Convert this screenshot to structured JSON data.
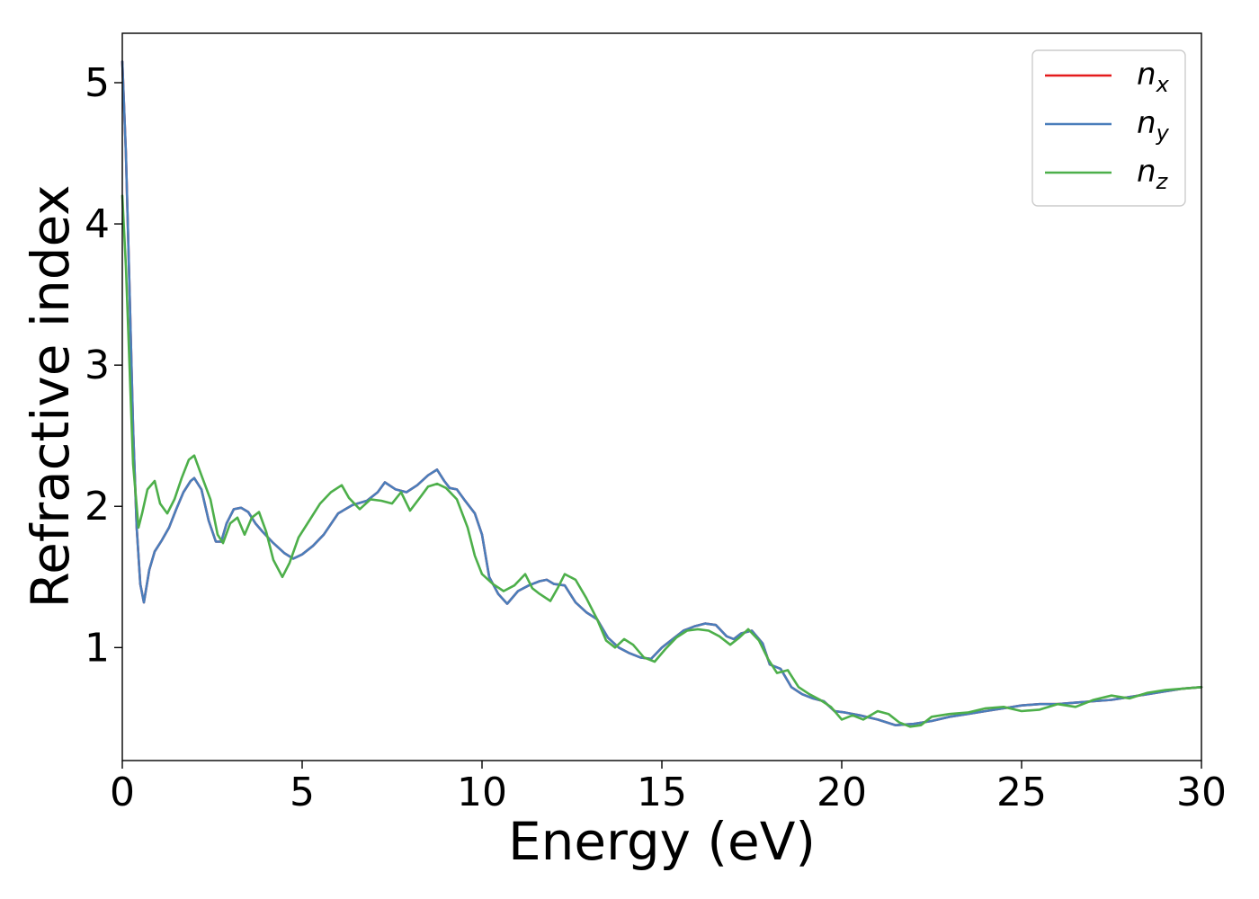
{
  "chart_data": {
    "type": "line",
    "xlabel": "Energy (eV)",
    "ylabel": "Refractive index",
    "xlim": [
      0,
      30
    ],
    "ylim": [
      0.2,
      5.35
    ],
    "xticks": [
      0,
      5,
      10,
      15,
      20,
      25,
      30
    ],
    "yticks": [
      1,
      2,
      3,
      4,
      5
    ],
    "grid": false,
    "legend_position": "top-right",
    "series": [
      {
        "name": "n_x",
        "label_main": "n",
        "label_sub": "x",
        "color": "#e41a1c",
        "x": [
          0.0,
          0.1,
          0.2,
          0.3,
          0.4,
          0.5,
          0.6,
          0.75,
          0.9,
          1.1,
          1.3,
          1.5,
          1.7,
          1.9,
          2.0,
          2.2,
          2.4,
          2.6,
          2.75,
          2.9,
          3.1,
          3.3,
          3.5,
          3.7,
          3.9,
          4.2,
          4.5,
          4.75,
          5.0,
          5.3,
          5.6,
          6.0,
          6.4,
          6.8,
          7.1,
          7.3,
          7.6,
          7.9,
          8.2,
          8.5,
          8.75,
          8.95,
          9.1,
          9.3,
          9.5,
          9.8,
          10.0,
          10.2,
          10.45,
          10.7,
          11.0,
          11.3,
          11.6,
          11.8,
          12.0,
          12.3,
          12.6,
          12.9,
          13.2,
          13.5,
          13.8,
          14.1,
          14.4,
          14.7,
          15.0,
          15.3,
          15.6,
          15.9,
          16.2,
          16.5,
          16.8,
          17.0,
          17.2,
          17.5,
          17.8,
          18.0,
          18.3,
          18.6,
          18.9,
          19.2,
          19.5,
          19.8,
          20.1,
          20.5,
          21.0,
          21.5,
          22.0,
          22.5,
          23.0,
          23.5,
          24.0,
          24.5,
          25.0,
          25.5,
          26.0,
          26.5,
          27.0,
          27.5,
          28.0,
          28.5,
          29.0,
          29.5,
          30.0
        ],
        "y": [
          5.15,
          4.5,
          3.55,
          2.55,
          1.85,
          1.45,
          1.32,
          1.55,
          1.68,
          1.76,
          1.85,
          1.98,
          2.1,
          2.18,
          2.2,
          2.12,
          1.9,
          1.75,
          1.75,
          1.88,
          1.98,
          1.99,
          1.96,
          1.88,
          1.82,
          1.74,
          1.67,
          1.63,
          1.66,
          1.72,
          1.8,
          1.95,
          2.01,
          2.04,
          2.1,
          2.17,
          2.12,
          2.1,
          2.15,
          2.22,
          2.26,
          2.18,
          2.13,
          2.12,
          2.05,
          1.95,
          1.8,
          1.5,
          1.38,
          1.31,
          1.4,
          1.44,
          1.47,
          1.48,
          1.45,
          1.44,
          1.32,
          1.25,
          1.2,
          1.07,
          1.0,
          0.96,
          0.93,
          0.92,
          1.0,
          1.06,
          1.12,
          1.15,
          1.17,
          1.16,
          1.08,
          1.06,
          1.1,
          1.12,
          1.03,
          0.88,
          0.85,
          0.72,
          0.67,
          0.64,
          0.62,
          0.55,
          0.54,
          0.52,
          0.49,
          0.45,
          0.46,
          0.48,
          0.51,
          0.53,
          0.55,
          0.57,
          0.59,
          0.6,
          0.6,
          0.61,
          0.62,
          0.63,
          0.65,
          0.67,
          0.69,
          0.71,
          0.72
        ]
      },
      {
        "name": "n_y",
        "label_main": "n",
        "label_sub": "y",
        "color": "#4a7ebb",
        "x": [
          0.0,
          0.1,
          0.2,
          0.3,
          0.4,
          0.5,
          0.6,
          0.75,
          0.9,
          1.1,
          1.3,
          1.5,
          1.7,
          1.9,
          2.0,
          2.2,
          2.4,
          2.6,
          2.75,
          2.9,
          3.1,
          3.3,
          3.5,
          3.7,
          3.9,
          4.2,
          4.5,
          4.75,
          5.0,
          5.3,
          5.6,
          6.0,
          6.4,
          6.8,
          7.1,
          7.3,
          7.6,
          7.9,
          8.2,
          8.5,
          8.75,
          8.95,
          9.1,
          9.3,
          9.5,
          9.8,
          10.0,
          10.2,
          10.45,
          10.7,
          11.0,
          11.3,
          11.6,
          11.8,
          12.0,
          12.3,
          12.6,
          12.9,
          13.2,
          13.5,
          13.8,
          14.1,
          14.4,
          14.7,
          15.0,
          15.3,
          15.6,
          15.9,
          16.2,
          16.5,
          16.8,
          17.0,
          17.2,
          17.5,
          17.8,
          18.0,
          18.3,
          18.6,
          18.9,
          19.2,
          19.5,
          19.8,
          20.1,
          20.5,
          21.0,
          21.5,
          22.0,
          22.5,
          23.0,
          23.5,
          24.0,
          24.5,
          25.0,
          25.5,
          26.0,
          26.5,
          27.0,
          27.5,
          28.0,
          28.5,
          29.0,
          29.5,
          30.0
        ],
        "y": [
          5.15,
          4.5,
          3.55,
          2.55,
          1.85,
          1.45,
          1.32,
          1.55,
          1.68,
          1.76,
          1.85,
          1.98,
          2.1,
          2.18,
          2.2,
          2.12,
          1.9,
          1.75,
          1.75,
          1.88,
          1.98,
          1.99,
          1.96,
          1.88,
          1.82,
          1.74,
          1.67,
          1.63,
          1.66,
          1.72,
          1.8,
          1.95,
          2.01,
          2.04,
          2.1,
          2.17,
          2.12,
          2.1,
          2.15,
          2.22,
          2.26,
          2.18,
          2.13,
          2.12,
          2.05,
          1.95,
          1.8,
          1.5,
          1.38,
          1.31,
          1.4,
          1.44,
          1.47,
          1.48,
          1.45,
          1.44,
          1.32,
          1.25,
          1.2,
          1.07,
          1.0,
          0.96,
          0.93,
          0.92,
          1.0,
          1.06,
          1.12,
          1.15,
          1.17,
          1.16,
          1.08,
          1.06,
          1.1,
          1.12,
          1.03,
          0.88,
          0.85,
          0.72,
          0.67,
          0.64,
          0.62,
          0.55,
          0.54,
          0.52,
          0.49,
          0.45,
          0.46,
          0.48,
          0.51,
          0.53,
          0.55,
          0.57,
          0.59,
          0.6,
          0.6,
          0.61,
          0.62,
          0.63,
          0.65,
          0.67,
          0.69,
          0.71,
          0.72
        ]
      },
      {
        "name": "n_z",
        "label_main": "n",
        "label_sub": "z",
        "color": "#4daf4a",
        "x": [
          0.0,
          0.1,
          0.2,
          0.3,
          0.45,
          0.55,
          0.7,
          0.9,
          1.05,
          1.25,
          1.45,
          1.65,
          1.85,
          2.0,
          2.2,
          2.45,
          2.65,
          2.8,
          3.0,
          3.2,
          3.4,
          3.6,
          3.8,
          4.0,
          4.2,
          4.45,
          4.65,
          4.9,
          5.2,
          5.5,
          5.8,
          6.1,
          6.3,
          6.6,
          6.9,
          7.2,
          7.5,
          7.75,
          8.0,
          8.3,
          8.5,
          8.75,
          9.0,
          9.3,
          9.6,
          9.8,
          10.0,
          10.3,
          10.6,
          10.9,
          11.2,
          11.4,
          11.6,
          11.9,
          12.1,
          12.3,
          12.6,
          12.9,
          13.2,
          13.45,
          13.7,
          13.95,
          14.2,
          14.5,
          14.8,
          15.1,
          15.4,
          15.7,
          16.0,
          16.3,
          16.6,
          16.9,
          17.15,
          17.4,
          17.7,
          17.95,
          18.2,
          18.5,
          18.8,
          19.1,
          19.4,
          19.7,
          20.0,
          20.3,
          20.6,
          21.0,
          21.3,
          21.6,
          21.9,
          22.2,
          22.5,
          23.0,
          23.5,
          24.0,
          24.5,
          25.0,
          25.5,
          26.0,
          26.5,
          27.0,
          27.5,
          28.0,
          28.5,
          29.0,
          29.5,
          30.0
        ],
        "y": [
          4.2,
          3.7,
          3.0,
          2.3,
          1.85,
          1.95,
          2.12,
          2.18,
          2.02,
          1.95,
          2.05,
          2.2,
          2.33,
          2.36,
          2.22,
          2.05,
          1.8,
          1.74,
          1.88,
          1.92,
          1.8,
          1.92,
          1.96,
          1.82,
          1.62,
          1.5,
          1.6,
          1.78,
          1.9,
          2.02,
          2.1,
          2.15,
          2.06,
          1.98,
          2.05,
          2.04,
          2.02,
          2.1,
          1.97,
          2.07,
          2.14,
          2.16,
          2.13,
          2.05,
          1.85,
          1.65,
          1.52,
          1.45,
          1.4,
          1.44,
          1.52,
          1.42,
          1.38,
          1.33,
          1.42,
          1.52,
          1.48,
          1.35,
          1.2,
          1.05,
          1.0,
          1.06,
          1.02,
          0.93,
          0.9,
          0.99,
          1.07,
          1.12,
          1.13,
          1.12,
          1.08,
          1.02,
          1.07,
          1.13,
          1.05,
          0.92,
          0.82,
          0.84,
          0.72,
          0.67,
          0.63,
          0.58,
          0.49,
          0.52,
          0.49,
          0.55,
          0.53,
          0.47,
          0.44,
          0.45,
          0.51,
          0.53,
          0.54,
          0.57,
          0.58,
          0.55,
          0.56,
          0.6,
          0.58,
          0.63,
          0.66,
          0.64,
          0.68,
          0.7,
          0.71,
          0.72
        ]
      }
    ]
  }
}
